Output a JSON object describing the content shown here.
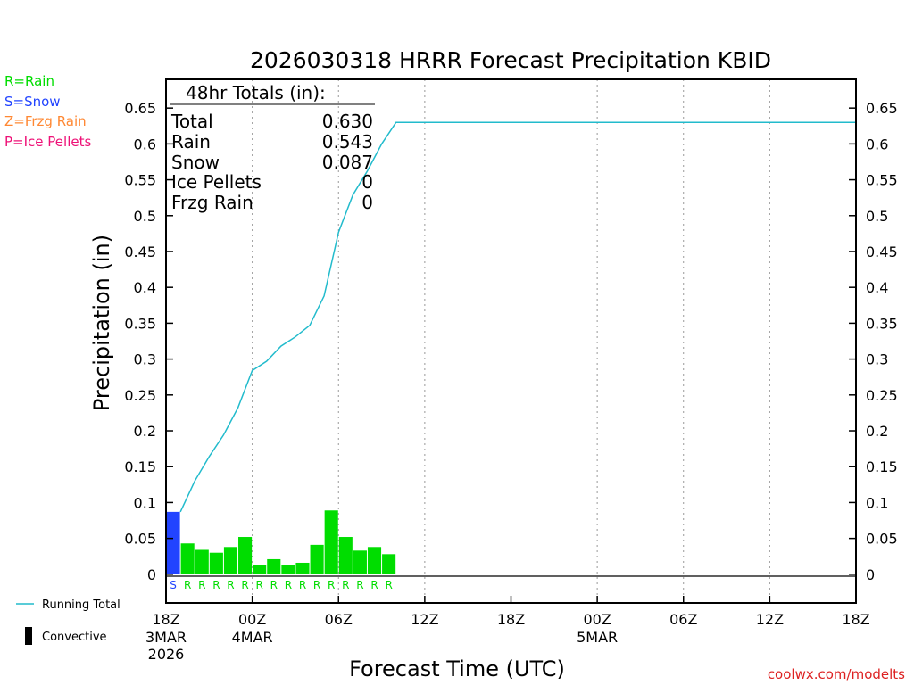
{
  "title": "2026030318 HRRR Forecast Precipitation KBID",
  "ptype_legend": [
    {
      "label": "R=Rain",
      "color": "#00dd00"
    },
    {
      "label": "S=Snow",
      "color": "#2244ff"
    },
    {
      "label": "Z=Frzg Rain",
      "color": "#ff8833"
    },
    {
      "label": "P=Ice Pellets",
      "color": "#ee1177"
    }
  ],
  "series_legend": {
    "running_total": {
      "label": "Running Total",
      "color": "#22bbcc"
    },
    "convective": {
      "label": "Convective",
      "color": "#000000"
    }
  },
  "totals_box": {
    "title": "48hr Totals (in):",
    "rows": [
      {
        "label": "Total",
        "value": "0.630"
      },
      {
        "label": "Rain",
        "value": "0.543"
      },
      {
        "label": "Snow",
        "value": "0.087"
      },
      {
        "label": "Ice Pellets",
        "value": "0"
      },
      {
        "label": "Frzg Rain",
        "value": "0"
      }
    ]
  },
  "credit": "coolwx.com/modelts",
  "chart_data": {
    "type": "bar",
    "title": "2026030318 HRRR Forecast Precipitation KBID",
    "xlabel": "Forecast Time (UTC)",
    "ylabel": "Precipitation (in)",
    "ylim": [
      -0.04,
      0.69
    ],
    "xlim": [
      0,
      48
    ],
    "yticks": [
      "0",
      "0.05",
      "0.1",
      "0.15",
      "0.2",
      "0.25",
      "0.3",
      "0.35",
      "0.4",
      "0.45",
      "0.5",
      "0.55",
      "0.6",
      "0.65"
    ],
    "xticks": [
      {
        "label": "18Z",
        "sub": [
          "3MAR",
          "2026"
        ]
      },
      {
        "label": "00Z",
        "sub": [
          "4MAR"
        ]
      },
      {
        "label": "06Z",
        "sub": []
      },
      {
        "label": "12Z",
        "sub": []
      },
      {
        "label": "18Z",
        "sub": []
      },
      {
        "label": "00Z",
        "sub": [
          "5MAR"
        ]
      },
      {
        "label": "06Z",
        "sub": []
      },
      {
        "label": "12Z",
        "sub": []
      },
      {
        "label": "18Z",
        "sub": []
      }
    ],
    "grid": "vertical dotted at 6-hour intervals",
    "hourly_bars": {
      "hours": [
        1,
        2,
        3,
        4,
        5,
        6,
        7,
        8,
        9,
        10,
        11,
        12,
        13,
        14,
        15,
        16
      ],
      "values": [
        0.087,
        0.043,
        0.034,
        0.03,
        0.038,
        0.052,
        0.013,
        0.021,
        0.013,
        0.016,
        0.041,
        0.089,
        0.052,
        0.033,
        0.038,
        0.028
      ],
      "ptype": [
        "S",
        "R",
        "R",
        "R",
        "R",
        "R",
        "R",
        "R",
        "R",
        "R",
        "R",
        "R",
        "R",
        "R",
        "R",
        "R"
      ]
    },
    "running_total": {
      "x": [
        1,
        2,
        3,
        4,
        5,
        6,
        7,
        8,
        9,
        10,
        11,
        12,
        13,
        14,
        15,
        16,
        48
      ],
      "y": [
        0.087,
        0.13,
        0.164,
        0.194,
        0.232,
        0.284,
        0.297,
        0.318,
        0.331,
        0.347,
        0.388,
        0.477,
        0.529,
        0.562,
        0.6,
        0.63,
        0.63
      ]
    }
  }
}
